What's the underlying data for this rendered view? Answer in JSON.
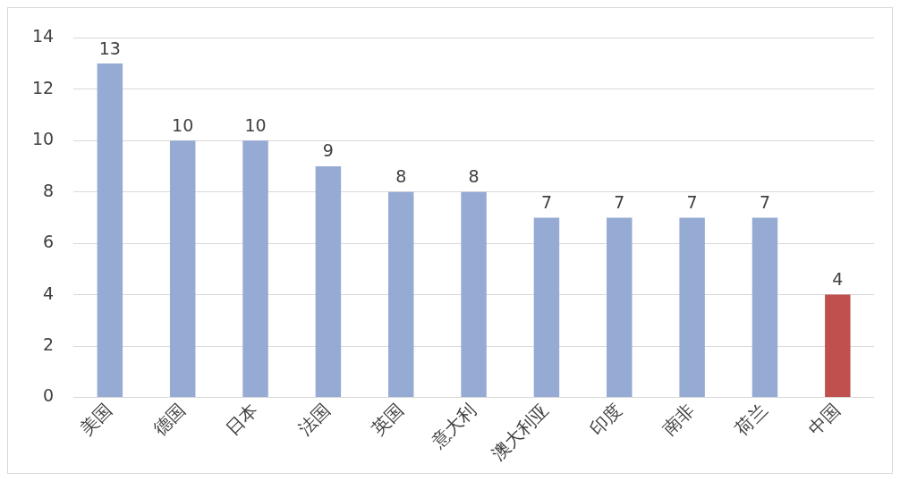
{
  "chart_data": {
    "type": "bar",
    "categories": [
      "美国",
      "德国",
      "日本",
      "法国",
      "英国",
      "意大利",
      "澳大利亚",
      "印度",
      "南非",
      "荷兰",
      "中国"
    ],
    "values": [
      13,
      10,
      10,
      9,
      8,
      8,
      7,
      7,
      7,
      7,
      4
    ],
    "colors": [
      "#95abd3",
      "#95abd3",
      "#95abd3",
      "#95abd3",
      "#95abd3",
      "#95abd3",
      "#95abd3",
      "#95abd3",
      "#95abd3",
      "#95abd3",
      "#c0504d"
    ],
    "ylim": [
      0,
      14
    ],
    "yticks": [
      0,
      2,
      4,
      6,
      8,
      10,
      12,
      14
    ],
    "grid": "y",
    "data_labels": true,
    "legend": false
  }
}
